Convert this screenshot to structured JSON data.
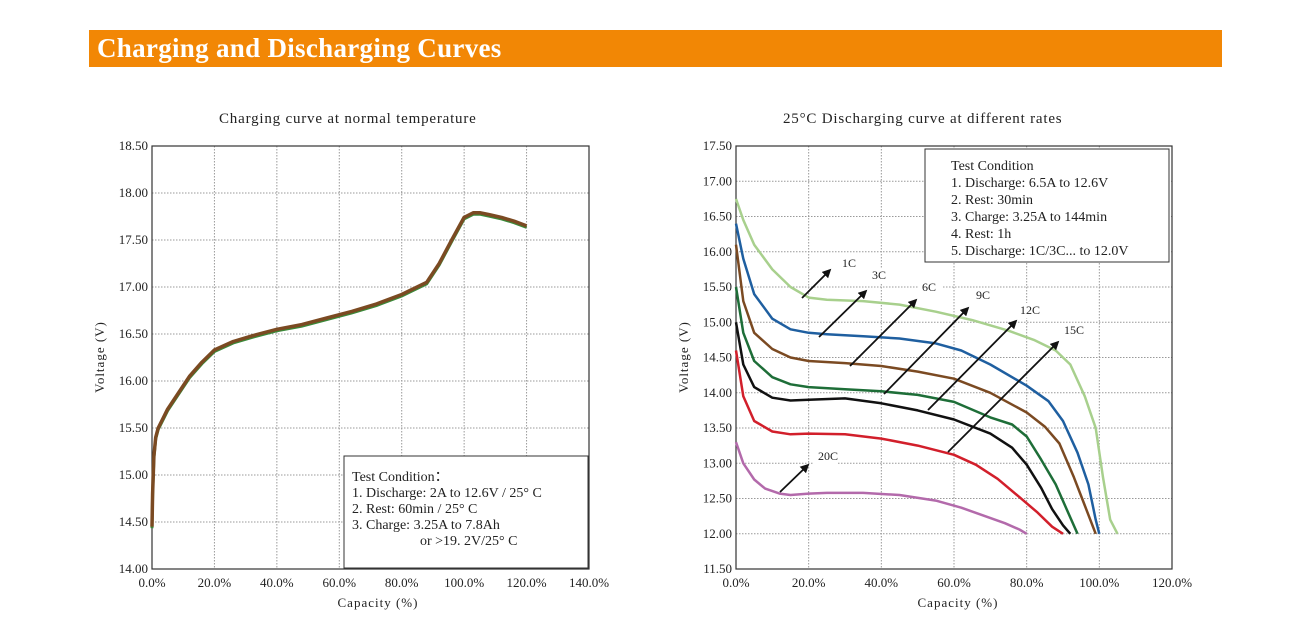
{
  "header": {
    "title": "Charging and Discharging Curves"
  },
  "chart_data": [
    {
      "type": "line",
      "title": "Charging curve at normal temperature",
      "xlabel": "Capacity (%)",
      "ylabel": "Voltage (V)",
      "xlim": [
        0,
        140
      ],
      "ylim": [
        14.0,
        18.5
      ],
      "xticks": [
        "0.0%",
        "20.0%",
        "40.0%",
        "60.0%",
        "80.0%",
        "100.0%",
        "120.0%",
        "140.0%"
      ],
      "yticks": [
        "14.00",
        "14.50",
        "15.00",
        "15.50",
        "16.00",
        "16.50",
        "17.00",
        "17.50",
        "18.00",
        "18.50"
      ],
      "grid": true,
      "colors": {
        "main": "#7b4a22",
        "under": "#3a8a3a"
      },
      "series": [
        {
          "x": [
            0,
            0.2,
            0.6,
            1.2,
            2,
            3.5,
            5,
            8,
            12,
            16,
            20,
            26,
            32,
            40,
            48,
            56,
            64,
            72,
            80,
            88,
            92,
            96,
            100,
            103,
            105,
            108,
            112,
            116,
            120
          ],
          "values": [
            14.45,
            14.8,
            15.2,
            15.4,
            15.5,
            15.6,
            15.7,
            15.85,
            16.05,
            16.2,
            16.33,
            16.42,
            16.48,
            16.55,
            16.6,
            16.67,
            16.74,
            16.82,
            16.92,
            17.05,
            17.25,
            17.5,
            17.74,
            17.79,
            17.79,
            17.77,
            17.74,
            17.7,
            17.65
          ]
        }
      ],
      "annotation": {
        "lines": [
          "Test Condition：",
          "1. Discharge: 2A to 12.6V / 25° C",
          "2. Rest: 60min / 25° C",
          "3. Charge: 3.25A to 7.8Ah",
          "or >19. 2V/25° C"
        ]
      }
    },
    {
      "type": "line",
      "title": "25°C Discharging curve at different rates",
      "xlabel": "Capacity (%)",
      "ylabel": "Voltage (V)",
      "xlim": [
        0,
        120
      ],
      "ylim": [
        11.5,
        17.5
      ],
      "xticks": [
        "0.0%",
        "20.0%",
        "40.0%",
        "60.0%",
        "80.0%",
        "100.0%",
        "120.0%"
      ],
      "yticks": [
        "11.50",
        "12.00",
        "12.50",
        "13.00",
        "13.50",
        "14.00",
        "14.50",
        "15.00",
        "15.50",
        "16.00",
        "16.50",
        "17.00",
        "17.50"
      ],
      "grid": true,
      "series": [
        {
          "name": "1C",
          "color": "#a8d08d",
          "x": [
            0,
            2,
            5,
            10,
            15,
            20,
            25,
            35,
            45,
            55,
            65,
            75,
            82,
            88,
            92,
            96,
            99,
            101,
            103,
            105
          ],
          "values": [
            16.75,
            16.45,
            16.1,
            15.75,
            15.5,
            15.35,
            15.32,
            15.3,
            15.25,
            15.15,
            15.03,
            14.88,
            14.75,
            14.6,
            14.4,
            13.95,
            13.5,
            12.8,
            12.2,
            12.0
          ]
        },
        {
          "name": "3C",
          "color": "#1f5fa0",
          "x": [
            0,
            2,
            5,
            10,
            15,
            20,
            25,
            35,
            45,
            55,
            62,
            70,
            80,
            86,
            90,
            94,
            97,
            99,
            100
          ],
          "values": [
            16.4,
            15.9,
            15.4,
            15.05,
            14.9,
            14.85,
            14.83,
            14.8,
            14.77,
            14.7,
            14.6,
            14.4,
            14.1,
            13.88,
            13.6,
            13.15,
            12.7,
            12.2,
            12.0
          ]
        },
        {
          "name": "6C",
          "color": "#7b4a22",
          "x": [
            0,
            2,
            5,
            10,
            15,
            20,
            30,
            40,
            50,
            60,
            70,
            80,
            85,
            89,
            93,
            96,
            99
          ],
          "values": [
            16.1,
            15.3,
            14.85,
            14.62,
            14.5,
            14.45,
            14.42,
            14.38,
            14.3,
            14.2,
            14.0,
            13.72,
            13.52,
            13.28,
            12.8,
            12.4,
            12.0
          ]
        },
        {
          "name": "9C",
          "color": "#1e6e38",
          "x": [
            0,
            2,
            5,
            10,
            15,
            20,
            30,
            40,
            50,
            60,
            70,
            76,
            80,
            84,
            88,
            91,
            94
          ],
          "values": [
            15.5,
            14.85,
            14.45,
            14.22,
            14.12,
            14.08,
            14.05,
            14.02,
            13.97,
            13.87,
            13.65,
            13.55,
            13.38,
            13.05,
            12.7,
            12.35,
            12.0
          ]
        },
        {
          "name": "12C",
          "color": "#111111",
          "x": [
            0,
            2,
            5,
            10,
            15,
            20,
            30,
            40,
            50,
            60,
            70,
            76,
            80,
            84,
            87,
            90,
            92
          ],
          "values": [
            15.0,
            14.4,
            14.08,
            13.93,
            13.89,
            13.9,
            13.92,
            13.85,
            13.75,
            13.62,
            13.42,
            13.22,
            12.98,
            12.65,
            12.35,
            12.12,
            12.0
          ]
        },
        {
          "name": "15C",
          "color": "#d21f2b",
          "x": [
            0,
            2,
            5,
            10,
            15,
            20,
            30,
            40,
            50,
            60,
            66,
            72,
            78,
            83,
            87,
            90
          ],
          "values": [
            14.6,
            13.95,
            13.6,
            13.45,
            13.41,
            13.42,
            13.41,
            13.35,
            13.25,
            13.12,
            12.98,
            12.78,
            12.52,
            12.3,
            12.1,
            12.0
          ]
        },
        {
          "name": "20C",
          "color": "#b36aab",
          "x": [
            0,
            2,
            5,
            8,
            12,
            15,
            20,
            25,
            35,
            45,
            55,
            62,
            68,
            74,
            78,
            80
          ],
          "values": [
            13.3,
            13.0,
            12.77,
            12.64,
            12.57,
            12.55,
            12.57,
            12.58,
            12.58,
            12.55,
            12.47,
            12.37,
            12.26,
            12.15,
            12.06,
            12.0
          ]
        }
      ],
      "annotation": {
        "lines": [
          "Test Condition",
          "1. Discharge: 6.5A to 12.6V",
          "2. Rest: 30min",
          "3. Charge: 3.25A to 144min",
          "4. Rest: 1h",
          "5. Discharge: 1C/3C... to 12.0V"
        ]
      }
    }
  ]
}
